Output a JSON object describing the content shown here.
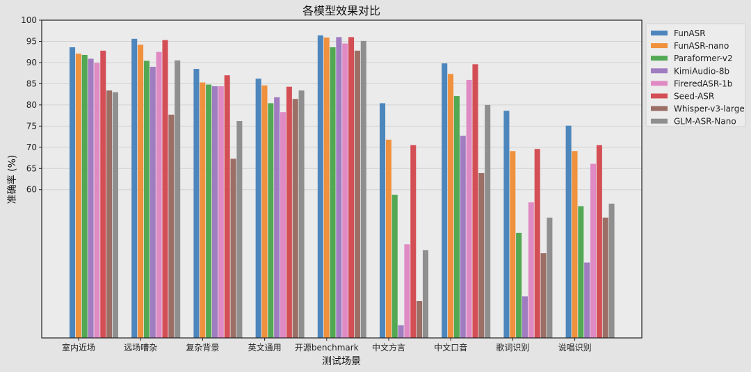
{
  "chart_data": {
    "type": "bar",
    "title": "各模型效果对比",
    "xlabel": "测试场景",
    "ylabel": "准确率 (%)",
    "ylim": [
      25,
      100
    ],
    "yticks": [
      60,
      65,
      70,
      75,
      80,
      85,
      90,
      95,
      100
    ],
    "grid": true,
    "legend_position": "upper right, outside plot",
    "categories": [
      "室内近场",
      "远场嘈杂",
      "复杂背景",
      "英文通用",
      "开源benchmark",
      "中文方言",
      "中文口音",
      "歌词识别",
      "说唱识别"
    ],
    "series": [
      {
        "name": "FunASR",
        "color": "#4c86bd",
        "values": [
          93.6,
          95.6,
          88.5,
          86.2,
          96.4,
          80.4,
          89.8,
          78.6,
          75.1
        ]
      },
      {
        "name": "FunASR-nano",
        "color": "#f0913e",
        "values": [
          92.1,
          94.2,
          85.3,
          84.6,
          95.9,
          71.8,
          87.3,
          69.1,
          69.1
        ]
      },
      {
        "name": "Paraformer-v2",
        "color": "#53a853",
        "values": [
          91.8,
          90.4,
          84.8,
          80.4,
          93.6,
          58.8,
          82.1,
          49.8,
          56.1
        ]
      },
      {
        "name": "KimiAudio-8b",
        "color": "#a07cc0",
        "values": [
          90.9,
          89.0,
          84.4,
          81.8,
          96.0,
          28.0,
          72.7,
          34.8,
          42.8
        ]
      },
      {
        "name": "FireredASR-1b",
        "color": "#e08ac4",
        "values": [
          89.9,
          92.5,
          84.4,
          78.3,
          94.5,
          47.1,
          85.9,
          57.0,
          66.1
        ]
      },
      {
        "name": "Seed-ASR",
        "color": "#d44f55",
        "values": [
          92.8,
          95.3,
          87.0,
          84.3,
          96.0,
          70.5,
          89.6,
          69.6,
          70.5
        ]
      },
      {
        "name": "Whisper-v3-large",
        "color": "#9b6e66",
        "values": [
          83.4,
          77.7,
          67.3,
          81.4,
          92.8,
          33.7,
          63.9,
          45.0,
          53.4
        ]
      },
      {
        "name": "GLM-ASR-Nano",
        "color": "#8f8f8f",
        "values": [
          83.0,
          90.5,
          76.2,
          83.4,
          95.1,
          45.7,
          80.0,
          53.4,
          56.7
        ]
      }
    ]
  },
  "colors": {
    "figure_bg": "#e4e4e4",
    "plot_bg": "#ebebeb",
    "grid": "#d2d2d2",
    "axis": "#222222"
  }
}
